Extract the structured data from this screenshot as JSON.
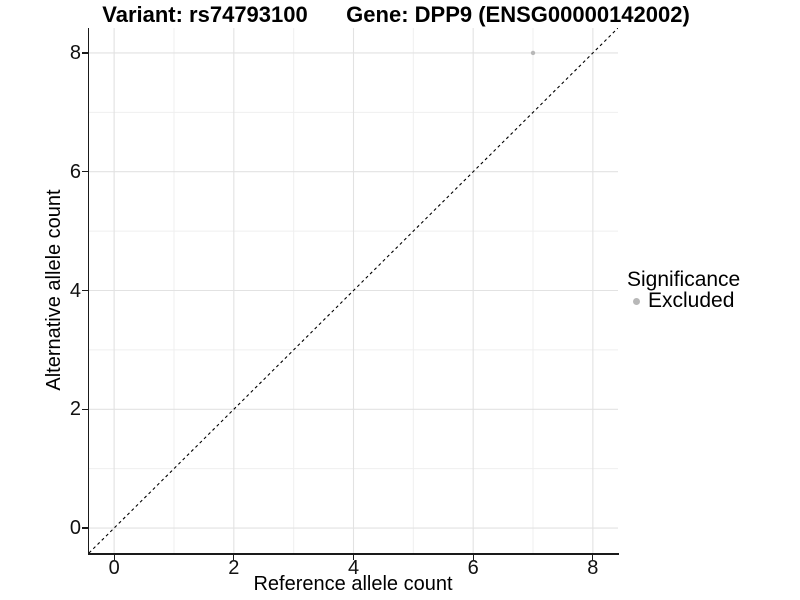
{
  "titles": {
    "variant": "Variant: rs74793100",
    "gene": "Gene: DPP9 (ENSG00000142002)"
  },
  "axes": {
    "x_label": "Reference allele count",
    "y_label": "Alternative allele count"
  },
  "legend": {
    "title": "Significance",
    "items": [
      {
        "label": "Excluded",
        "color": "#b8b8b8"
      }
    ]
  },
  "style": {
    "background": "#ffffff",
    "grid_major": "#e2e2e2",
    "grid_minor": "#efefef",
    "axis_color": "#1a1a1a",
    "dashed_line": "#000000",
    "point_color": "#b8b8b8",
    "text_color": "#000000"
  },
  "chart_data": {
    "type": "scatter",
    "title_left": "Variant: rs74793100",
    "title_right": "Gene: DPP9 (ENSG00000142002)",
    "xlabel": "Reference allele count",
    "ylabel": "Alternative allele count",
    "series": [
      {
        "name": "Excluded",
        "color": "#b8b8b8",
        "points": [
          [
            7,
            8
          ]
        ]
      }
    ],
    "points": [
      {
        "x": 7,
        "y": 8,
        "series": "Excluded"
      }
    ],
    "identity_line": {
      "style": "dashed",
      "slope": 1,
      "intercept": 0,
      "from": -0.42,
      "to": 8.42
    },
    "xlim": [
      -0.42,
      8.42
    ],
    "ylim": [
      -0.42,
      8.42
    ],
    "x_ticks": [
      0,
      2,
      4,
      6,
      8
    ],
    "y_ticks": [
      0,
      2,
      4,
      6,
      8
    ],
    "x_tick_labels": [
      "0",
      "2",
      "4",
      "6",
      "8"
    ],
    "y_tick_labels": [
      "0",
      "2",
      "4",
      "6",
      "8"
    ],
    "x_minor_gridlines": [
      1,
      3,
      5,
      7
    ],
    "y_minor_gridlines": [
      1,
      3,
      5,
      7
    ],
    "grid": true,
    "legend_position": "right",
    "point_radius_px": 2.2
  }
}
